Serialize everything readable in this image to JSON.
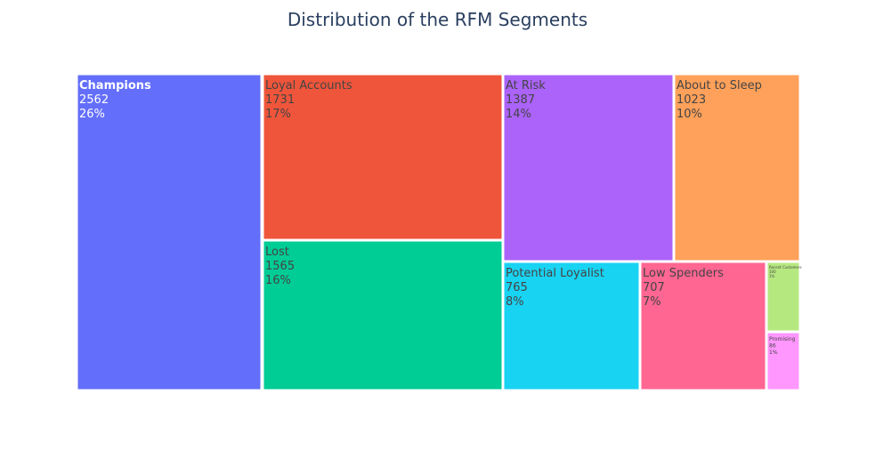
{
  "chart_data": {
    "type": "treemap",
    "title": "Distribution of the RFM Segments",
    "segments": [
      {
        "name": "Champions",
        "value": 2562,
        "percent": "26%",
        "color": "#636efa",
        "text_color": "#ffffff"
      },
      {
        "name": "Loyal Accounts",
        "value": 1731,
        "percent": "17%",
        "color": "#ef553b",
        "text_color": "#444444"
      },
      {
        "name": "Lost",
        "value": 1565,
        "percent": "16%",
        "color": "#00cc96",
        "text_color": "#444444"
      },
      {
        "name": "At Risk",
        "value": 1387,
        "percent": "14%",
        "color": "#ab63fa",
        "text_color": "#444444"
      },
      {
        "name": "About to Sleep",
        "value": 1023,
        "percent": "10%",
        "color": "#ffa15a",
        "text_color": "#444444"
      },
      {
        "name": "Potential Loyalist",
        "value": 765,
        "percent": "8%",
        "color": "#19d3f3",
        "text_color": "#444444"
      },
      {
        "name": "Low Spenders",
        "value": 707,
        "percent": "7%",
        "color": "#ff6692",
        "text_color": "#444444"
      },
      {
        "name": "Recent Customers",
        "value": 100,
        "percent": "1%",
        "color": "#b6e880",
        "text_color": "#444444"
      },
      {
        "name": "Promising",
        "value": 86,
        "percent": "1%",
        "color": "#ff97ff",
        "text_color": "#444444"
      }
    ]
  }
}
